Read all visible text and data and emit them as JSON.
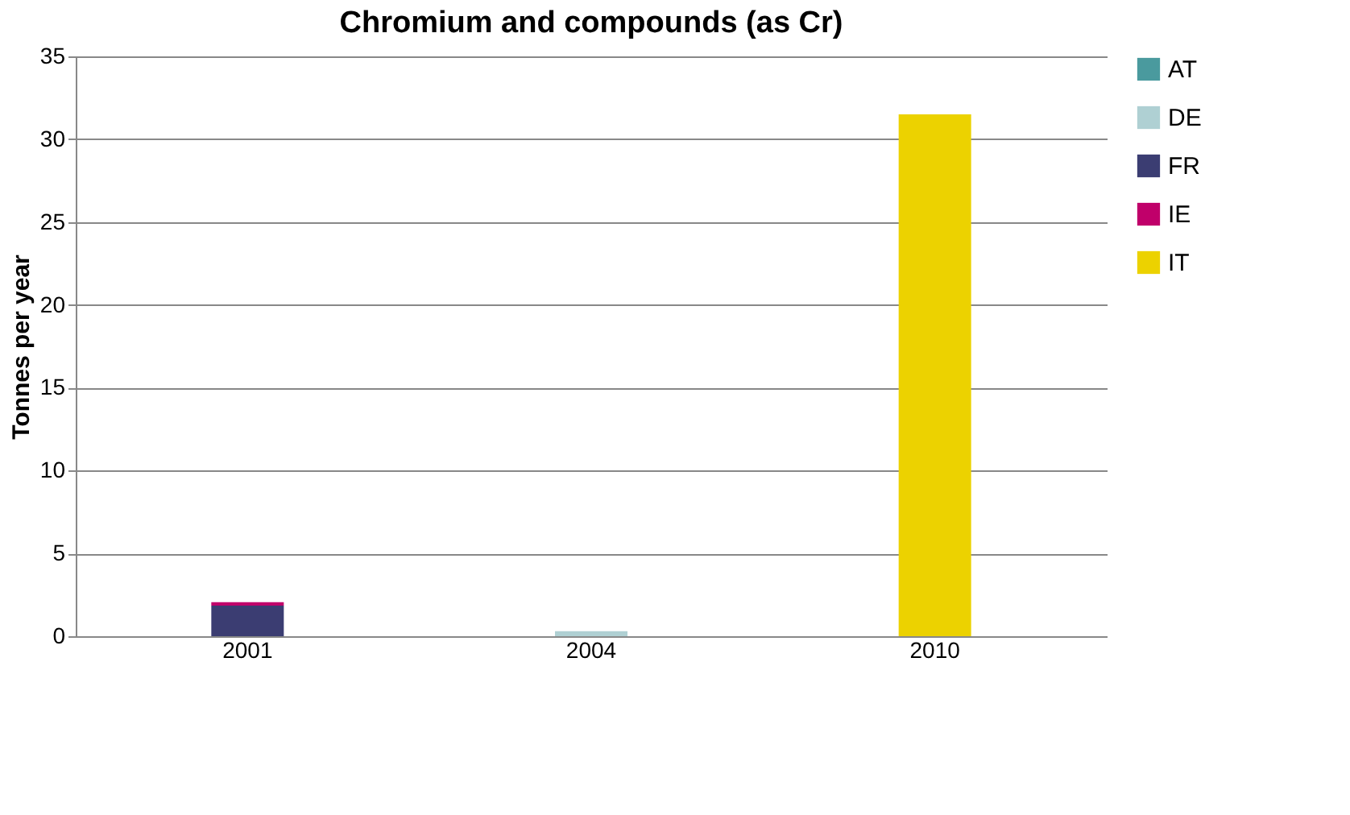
{
  "chart_data": {
    "type": "bar",
    "title": "Chromium and compounds (as Cr)",
    "ylabel": "Tonnes per year",
    "categories": [
      "2001",
      "2004",
      "2010"
    ],
    "stacked": true,
    "series": [
      {
        "name": "AT",
        "color": "#4a9a9e",
        "values": [
          0,
          0,
          0
        ]
      },
      {
        "name": "DE",
        "color": "#afd0d3",
        "values": [
          0,
          0.3,
          0
        ]
      },
      {
        "name": "FR",
        "color": "#3b3d72",
        "values": [
          1.85,
          0,
          0
        ]
      },
      {
        "name": "IE",
        "color": "#c0006a",
        "values": [
          0.2,
          0,
          0
        ]
      },
      {
        "name": "IT",
        "color": "#ecd200",
        "values": [
          0,
          0,
          31.5
        ]
      }
    ],
    "ylim": [
      0,
      35
    ],
    "yticks": [
      0,
      5,
      10,
      15,
      20,
      25,
      30,
      35
    ],
    "grid": "y",
    "legend": "right"
  }
}
